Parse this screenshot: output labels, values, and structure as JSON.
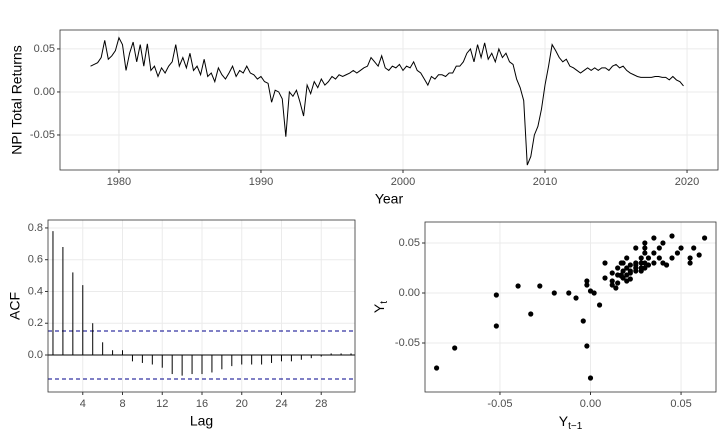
{
  "chart_data": [
    {
      "type": "line",
      "color": "#000000",
      "grid": true,
      "xlabel": "Year",
      "ylabel": "NPI Total Returns",
      "xlim": [
        1975.85,
        2022.18
      ],
      "xticks": [
        1980,
        1990,
        2000,
        2010,
        2020
      ],
      "ylim": [
        -0.0907,
        0.072
      ],
      "yticks": [
        -0.05,
        {
          "value": 0,
          "label": "0.00"
        },
        0.05
      ],
      "x": [
        1978,
        1978.25,
        1978.5,
        1978.75,
        1979,
        1979.25,
        1979.5,
        1979.75,
        1980,
        1980.25,
        1980.5,
        1980.75,
        1981,
        1981.25,
        1981.5,
        1981.75,
        1982,
        1982.25,
        1982.5,
        1982.75,
        1983,
        1983.25,
        1983.5,
        1983.75,
        1984,
        1984.25,
        1984.5,
        1984.75,
        1985,
        1985.25,
        1985.5,
        1985.75,
        1986,
        1986.25,
        1986.5,
        1986.75,
        1987,
        1987.25,
        1987.5,
        1987.75,
        1988,
        1988.25,
        1988.5,
        1988.75,
        1989,
        1989.25,
        1989.5,
        1989.75,
        1990,
        1990.25,
        1990.5,
        1990.75,
        1991,
        1991.25,
        1991.5,
        1991.75,
        1992,
        1992.25,
        1992.5,
        1992.75,
        1993,
        1993.25,
        1993.5,
        1993.75,
        1994,
        1994.25,
        1994.5,
        1994.75,
        1995,
        1995.25,
        1995.5,
        1995.75,
        1996,
        1996.25,
        1996.5,
        1996.75,
        1997,
        1997.25,
        1997.5,
        1997.75,
        1998,
        1998.25,
        1998.5,
        1998.75,
        1999,
        1999.25,
        1999.5,
        1999.75,
        2000,
        2000.25,
        2000.5,
        2000.75,
        2001,
        2001.25,
        2001.5,
        2001.75,
        2002,
        2002.25,
        2002.5,
        2002.75,
        2003,
        2003.25,
        2003.5,
        2003.75,
        2004,
        2004.25,
        2004.5,
        2004.75,
        2005,
        2005.25,
        2005.5,
        2005.75,
        2006,
        2006.25,
        2006.5,
        2006.75,
        2007,
        2007.25,
        2007.5,
        2007.75,
        2008,
        2008.25,
        2008.5,
        2008.75,
        2009,
        2009.25,
        2009.5,
        2009.75,
        2010,
        2010.25,
        2010.5,
        2010.75,
        2011,
        2011.25,
        2011.5,
        2011.75,
        2012,
        2012.25,
        2012.5,
        2012.75,
        2013,
        2013.25,
        2013.5,
        2013.75,
        2014,
        2014.25,
        2014.5,
        2014.75,
        2015,
        2015.25,
        2015.5,
        2015.75,
        2016,
        2016.25,
        2016.5,
        2016.75,
        2017,
        2017.25,
        2017.5,
        2017.75,
        2018,
        2018.25,
        2018.5,
        2018.75,
        2019,
        2019.25,
        2019.5,
        2019.75
      ],
      "values": [
        0.03,
        0.032,
        0.034,
        0.04,
        0.06,
        0.038,
        0.042,
        0.048,
        0.063,
        0.055,
        0.025,
        0.045,
        0.058,
        0.035,
        0.055,
        0.03,
        0.056,
        0.025,
        0.03,
        0.018,
        0.028,
        0.022,
        0.03,
        0.035,
        0.055,
        0.03,
        0.04,
        0.028,
        0.045,
        0.025,
        0.03,
        0.02,
        0.038,
        0.018,
        0.022,
        0.012,
        0.028,
        0.02,
        0.015,
        0.022,
        0.03,
        0.018,
        0.025,
        0.022,
        0.03,
        0.022,
        0.02,
        0.015,
        0.018,
        0.012,
        0.01,
        -0.012,
        0.002,
        0.0,
        -0.008,
        -0.052,
        0.0,
        -0.005,
        0.002,
        -0.012,
        -0.028,
        0.008,
        -0.002,
        0.012,
        0.005,
        0.015,
        0.008,
        0.012,
        0.018,
        0.015,
        0.02,
        0.018,
        0.02,
        0.022,
        0.025,
        0.022,
        0.025,
        0.028,
        0.03,
        0.04,
        0.035,
        0.03,
        0.042,
        0.028,
        0.025,
        0.03,
        0.028,
        0.032,
        0.025,
        0.03,
        0.028,
        0.035,
        0.025,
        0.022,
        0.015,
        0.008,
        0.018,
        0.015,
        0.02,
        0.02,
        0.018,
        0.022,
        0.022,
        0.03,
        0.03,
        0.035,
        0.045,
        0.05,
        0.035,
        0.055,
        0.04,
        0.057,
        0.038,
        0.045,
        0.035,
        0.05,
        0.04,
        0.045,
        0.035,
        0.032,
        0.015,
        0.005,
        -0.01,
        -0.085,
        -0.075,
        -0.05,
        -0.04,
        -0.02,
        0.008,
        0.03,
        0.055,
        0.048,
        0.04,
        0.035,
        0.038,
        0.03,
        0.028,
        0.025,
        0.022,
        0.025,
        0.028,
        0.025,
        0.028,
        0.025,
        0.028,
        0.028,
        0.025,
        0.03,
        0.032,
        0.028,
        0.03,
        0.025,
        0.022,
        0.02,
        0.018,
        0.017,
        0.017,
        0.017,
        0.017,
        0.018,
        0.018,
        0.017,
        0.017,
        0.014,
        0.018,
        0.014,
        0.012,
        0.007
      ]
    },
    {
      "type": "acf",
      "color": "#000000",
      "grid": true,
      "xlabel": "Lag",
      "ylabel": "ACF",
      "xlim": [
        0.5,
        31.4
      ],
      "xticks": [
        4,
        8,
        12,
        16,
        20,
        24,
        28
      ],
      "ylim": [
        -0.233,
        0.85
      ],
      "yticks": [
        {
          "value": 0,
          "label": "0.0"
        },
        0.2,
        0.4,
        0.6,
        0.8
      ],
      "conf_bounds": [
        -0.151,
        0.151
      ],
      "conf_color": "#00008b",
      "x": [
        1,
        2,
        3,
        4,
        5,
        6,
        7,
        8,
        9,
        10,
        11,
        12,
        13,
        14,
        15,
        16,
        17,
        18,
        19,
        20,
        21,
        22,
        23,
        24,
        25,
        26,
        27,
        28,
        29,
        30,
        31
      ],
      "values": [
        0.78,
        0.68,
        0.52,
        0.44,
        0.2,
        0.08,
        0.03,
        0.03,
        -0.04,
        -0.05,
        -0.06,
        -0.08,
        -0.12,
        -0.13,
        -0.12,
        -0.12,
        -0.11,
        -0.09,
        -0.07,
        -0.06,
        -0.06,
        -0.06,
        -0.05,
        -0.04,
        -0.04,
        -0.03,
        -0.02,
        -0.01,
        0.01,
        0.01,
        0.01
      ]
    },
    {
      "type": "scatter",
      "color": "#000000",
      "grid": true,
      "xlabel": {
        "text": "Y",
        "subscript": "t−1"
      },
      "ylabel": {
        "text": "Y",
        "subscript": "t"
      },
      "xlim": [
        -0.0914,
        0.0693
      ],
      "xticks": [
        -0.05,
        {
          "value": 0,
          "label": "0.00"
        },
        0.05
      ],
      "ylim": [
        -0.099,
        0.071
      ],
      "yticks": [
        -0.05,
        {
          "value": 0,
          "label": "0.00"
        },
        0.05
      ],
      "x": [
        -0.085,
        -0.075,
        -0.052,
        -0.052,
        -0.04,
        -0.033,
        -0.028,
        -0.02,
        -0.012,
        -0.008,
        -0.002,
        -0.002,
        -0.004,
        -0.002,
        0.0,
        0.0,
        0.002,
        0.005,
        0.008,
        0.008,
        0.012,
        0.012,
        0.015,
        0.015,
        0.015,
        0.017,
        0.017,
        0.018,
        0.018,
        0.018,
        0.02,
        0.02,
        0.02,
        0.022,
        0.022,
        0.022,
        0.025,
        0.025,
        0.025,
        0.025,
        0.028,
        0.028,
        0.028,
        0.028,
        0.03,
        0.03,
        0.03,
        0.03,
        0.032,
        0.032,
        0.035,
        0.035,
        0.035,
        0.038,
        0.038,
        0.04,
        0.04,
        0.042,
        0.045,
        0.045,
        0.048,
        0.05,
        0.055,
        0.055,
        0.057,
        0.06,
        0.063,
        0.012,
        0.014,
        0.017,
        0.02,
        0.025,
        0.03,
        0.022
      ],
      "values": [
        -0.075,
        -0.055,
        -0.033,
        -0.002,
        0.007,
        -0.021,
        0.007,
        0.0,
        0.0,
        -0.005,
        0.012,
        0.008,
        -0.028,
        -0.053,
        -0.085,
        0.002,
        0.0,
        -0.012,
        0.03,
        0.015,
        0.008,
        0.02,
        0.018,
        0.01,
        0.025,
        0.017,
        0.018,
        0.015,
        0.022,
        0.03,
        0.012,
        0.025,
        0.018,
        0.022,
        0.028,
        0.02,
        0.03,
        0.022,
        0.028,
        0.025,
        0.035,
        0.025,
        0.03,
        0.022,
        0.04,
        0.025,
        0.03,
        0.045,
        0.028,
        0.035,
        0.03,
        0.04,
        0.055,
        0.045,
        0.035,
        0.05,
        0.03,
        0.028,
        0.035,
        0.057,
        0.04,
        0.045,
        0.03,
        0.035,
        0.045,
        0.038,
        0.055,
        0.012,
        0.005,
        0.03,
        0.035,
        0.045,
        0.05,
        0.014
      ]
    }
  ]
}
